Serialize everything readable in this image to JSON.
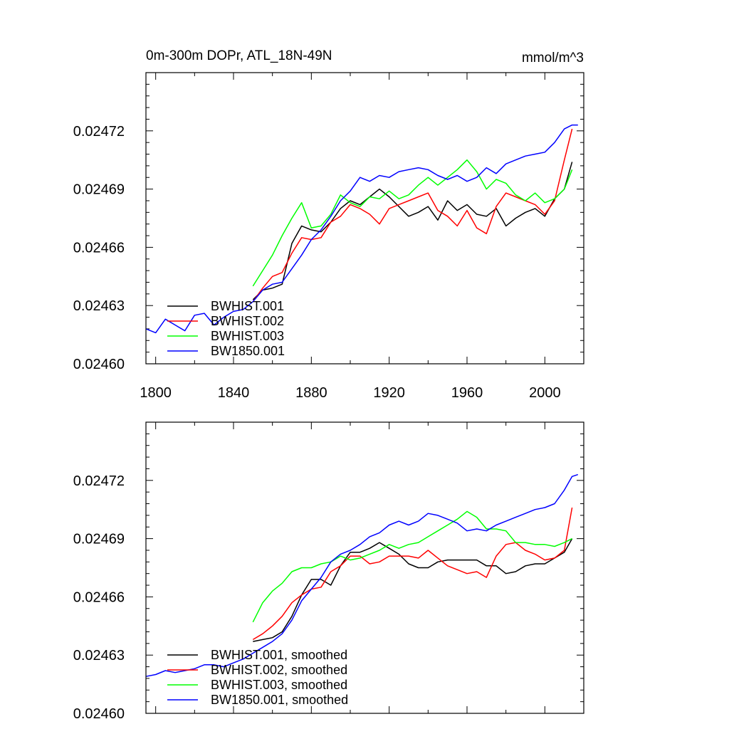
{
  "chart_data": [
    {
      "type": "line",
      "title_left": "0m-300m DOPr, ATL_18N-49N",
      "title_right": "mmol/m^3",
      "xlim": [
        1795,
        2020
      ],
      "ylim": [
        0.0246,
        0.02475
      ],
      "x_ticks": [
        1800,
        1840,
        1880,
        1920,
        1960,
        2000
      ],
      "x_tick_labels": [
        "1800",
        "1840",
        "1880",
        "1920",
        "1960",
        "2000"
      ],
      "y_ticks": [
        0.0246,
        0.02463,
        0.02466,
        0.02469,
        0.02472
      ],
      "y_tick_labels": [
        "0.02460",
        "0.02463",
        "0.02466",
        "0.02469",
        "0.02472"
      ],
      "legend_location": "lower-left",
      "series": [
        {
          "name": "BWHIST.001",
          "color": "#000000",
          "x": [
            1850,
            1855,
            1860,
            1865,
            1870,
            1875,
            1880,
            1885,
            1890,
            1895,
            1900,
            1905,
            1910,
            1915,
            1920,
            1925,
            1930,
            1935,
            1940,
            1945,
            1950,
            1955,
            1960,
            1965,
            1970,
            1975,
            1980,
            1985,
            1990,
            1995,
            2000,
            2005,
            2010,
            2014
          ],
          "y": [
            0.024633,
            0.024638,
            0.024639,
            0.024641,
            0.024662,
            0.024671,
            0.024669,
            0.024668,
            0.024673,
            0.02468,
            0.024684,
            0.024682,
            0.024686,
            0.02469,
            0.024686,
            0.024681,
            0.024676,
            0.024678,
            0.024681,
            0.024674,
            0.024684,
            0.024679,
            0.024682,
            0.024677,
            0.024676,
            0.02468,
            0.024671,
            0.024675,
            0.024678,
            0.02468,
            0.024676,
            0.024685,
            0.02469,
            0.024704
          ]
        },
        {
          "name": "BWHIST.002",
          "color": "#ff0000",
          "x": [
            1850,
            1855,
            1860,
            1865,
            1870,
            1875,
            1880,
            1885,
            1890,
            1895,
            1900,
            1905,
            1910,
            1915,
            1920,
            1925,
            1930,
            1935,
            1940,
            1945,
            1950,
            1955,
            1960,
            1965,
            1970,
            1975,
            1980,
            1985,
            1990,
            1995,
            2000,
            2005,
            2010,
            2014
          ],
          "y": [
            0.024632,
            0.024639,
            0.024645,
            0.024647,
            0.024657,
            0.024665,
            0.024664,
            0.024665,
            0.024673,
            0.024676,
            0.024682,
            0.02468,
            0.024677,
            0.024672,
            0.02468,
            0.024682,
            0.024684,
            0.024686,
            0.024688,
            0.024679,
            0.024676,
            0.024671,
            0.024679,
            0.02467,
            0.024667,
            0.024681,
            0.024688,
            0.024686,
            0.024684,
            0.024682,
            0.024677,
            0.024684,
            0.024705,
            0.024721
          ]
        },
        {
          "name": "BWHIST.003",
          "color": "#00ff00",
          "x": [
            1850,
            1855,
            1860,
            1865,
            1870,
            1875,
            1880,
            1885,
            1890,
            1895,
            1900,
            1905,
            1910,
            1915,
            1920,
            1925,
            1930,
            1935,
            1940,
            1945,
            1950,
            1955,
            1960,
            1965,
            1970,
            1975,
            1980,
            1985,
            1990,
            1995,
            2000,
            2005,
            2010,
            2014
          ],
          "y": [
            0.02464,
            0.024648,
            0.024656,
            0.024666,
            0.024675,
            0.024683,
            0.02467,
            0.024671,
            0.024677,
            0.024687,
            0.024683,
            0.024681,
            0.024686,
            0.024685,
            0.024689,
            0.024685,
            0.024687,
            0.024692,
            0.024696,
            0.024692,
            0.024696,
            0.0247,
            0.024705,
            0.024699,
            0.02469,
            0.024695,
            0.024693,
            0.024687,
            0.024684,
            0.024688,
            0.024683,
            0.024685,
            0.02469,
            0.0247
          ]
        },
        {
          "name": "BW1850.001",
          "color": "#0000ff",
          "x": [
            1795,
            1800,
            1805,
            1810,
            1815,
            1820,
            1825,
            1830,
            1835,
            1840,
            1845,
            1850,
            1855,
            1860,
            1865,
            1870,
            1875,
            1880,
            1885,
            1890,
            1895,
            1900,
            1905,
            1910,
            1915,
            1920,
            1925,
            1930,
            1935,
            1940,
            1945,
            1950,
            1955,
            1960,
            1965,
            1970,
            1975,
            1980,
            1985,
            1990,
            1995,
            2000,
            2005,
            2010,
            2014,
            2017
          ],
          "y": [
            0.024618,
            0.024616,
            0.024623,
            0.02462,
            0.024617,
            0.024625,
            0.024626,
            0.02462,
            0.024624,
            0.024627,
            0.024628,
            0.024632,
            0.024638,
            0.024641,
            0.024642,
            0.024649,
            0.024656,
            0.024664,
            0.024669,
            0.024676,
            0.024684,
            0.024689,
            0.024696,
            0.024694,
            0.024697,
            0.024696,
            0.024699,
            0.0247,
            0.024701,
            0.0247,
            0.024697,
            0.024695,
            0.024697,
            0.024694,
            0.024696,
            0.024701,
            0.024698,
            0.024703,
            0.024705,
            0.024707,
            0.024708,
            0.024709,
            0.024714,
            0.024721,
            0.024723,
            0.024723
          ]
        }
      ]
    },
    {
      "type": "line",
      "xlim": [
        1795,
        2020
      ],
      "ylim": [
        0.0246,
        0.02475
      ],
      "x_ticks": [
        1800,
        1840,
        1880,
        1920,
        1960,
        2000
      ],
      "y_ticks": [
        0.0246,
        0.02463,
        0.02466,
        0.02469,
        0.02472
      ],
      "y_tick_labels": [
        "0.02460",
        "0.02463",
        "0.02466",
        "0.02469",
        "0.02472"
      ],
      "legend_location": "lower-left",
      "series": [
        {
          "name": "BWHIST.001, smoothed",
          "color": "#000000",
          "x": [
            1850,
            1855,
            1860,
            1865,
            1870,
            1875,
            1880,
            1885,
            1890,
            1895,
            1900,
            1905,
            1910,
            1915,
            1920,
            1925,
            1930,
            1935,
            1940,
            1945,
            1950,
            1955,
            1960,
            1965,
            1970,
            1975,
            1980,
            1985,
            1990,
            1995,
            2000,
            2005,
            2010,
            2014
          ],
          "y": [
            0.024637,
            0.024638,
            0.024639,
            0.024642,
            0.02465,
            0.024661,
            0.024669,
            0.024669,
            0.024666,
            0.024676,
            0.024683,
            0.024683,
            0.024685,
            0.024688,
            0.024685,
            0.024682,
            0.024677,
            0.024675,
            0.024675,
            0.024678,
            0.024679,
            0.024679,
            0.024679,
            0.024679,
            0.024676,
            0.024676,
            0.024672,
            0.024673,
            0.024676,
            0.024677,
            0.024677,
            0.02468,
            0.024683,
            0.02469
          ]
        },
        {
          "name": "BWHIST.002, smoothed",
          "color": "#ff0000",
          "x": [
            1850,
            1855,
            1860,
            1865,
            1870,
            1875,
            1880,
            1885,
            1890,
            1895,
            1900,
            1905,
            1910,
            1915,
            1920,
            1925,
            1930,
            1935,
            1940,
            1945,
            1950,
            1955,
            1960,
            1965,
            1970,
            1975,
            1980,
            1985,
            1990,
            1995,
            2000,
            2005,
            2010,
            2014
          ],
          "y": [
            0.024638,
            0.024641,
            0.024645,
            0.02465,
            0.024657,
            0.024661,
            0.024664,
            0.024665,
            0.024673,
            0.024676,
            0.024681,
            0.024681,
            0.024677,
            0.024678,
            0.024681,
            0.024681,
            0.024681,
            0.02468,
            0.024684,
            0.02468,
            0.024676,
            0.024674,
            0.024672,
            0.024673,
            0.02467,
            0.024681,
            0.024687,
            0.024688,
            0.024684,
            0.024682,
            0.024679,
            0.02468,
            0.024684,
            0.024706
          ]
        },
        {
          "name": "BWHIST.003, smoothed",
          "color": "#00ff00",
          "x": [
            1850,
            1855,
            1860,
            1865,
            1870,
            1875,
            1880,
            1885,
            1890,
            1895,
            1900,
            1905,
            1910,
            1915,
            1920,
            1925,
            1930,
            1935,
            1940,
            1945,
            1950,
            1955,
            1960,
            1965,
            1970,
            1975,
            1980,
            1985,
            1990,
            1995,
            2000,
            2005,
            2010,
            2014
          ],
          "y": [
            0.024647,
            0.024657,
            0.024663,
            0.024667,
            0.024673,
            0.024675,
            0.024675,
            0.024677,
            0.024678,
            0.024681,
            0.024679,
            0.02468,
            0.024682,
            0.024684,
            0.024687,
            0.024685,
            0.024687,
            0.024688,
            0.024691,
            0.024694,
            0.024697,
            0.0247,
            0.024704,
            0.024701,
            0.024695,
            0.024695,
            0.024694,
            0.024688,
            0.024688,
            0.024687,
            0.024687,
            0.024686,
            0.024688,
            0.02469
          ]
        },
        {
          "name": "BW1850.001, smoothed",
          "color": "#0000ff",
          "x": [
            1795,
            1800,
            1805,
            1810,
            1815,
            1820,
            1825,
            1830,
            1835,
            1840,
            1845,
            1850,
            1855,
            1860,
            1865,
            1870,
            1875,
            1880,
            1885,
            1890,
            1895,
            1900,
            1905,
            1910,
            1915,
            1920,
            1925,
            1930,
            1935,
            1940,
            1945,
            1950,
            1955,
            1960,
            1965,
            1970,
            1975,
            1980,
            1985,
            1990,
            1995,
            2000,
            2005,
            2010,
            2014,
            2017
          ],
          "y": [
            0.024619,
            0.02462,
            0.024622,
            0.024621,
            0.024622,
            0.024623,
            0.024625,
            0.024625,
            0.024624,
            0.024626,
            0.024628,
            0.024631,
            0.024634,
            0.024637,
            0.024641,
            0.024648,
            0.024658,
            0.024664,
            0.02467,
            0.024678,
            0.024682,
            0.024684,
            0.024687,
            0.024691,
            0.024693,
            0.024697,
            0.024699,
            0.024697,
            0.024699,
            0.024703,
            0.024702,
            0.0247,
            0.024698,
            0.024694,
            0.024695,
            0.024694,
            0.024697,
            0.024699,
            0.024701,
            0.024703,
            0.024705,
            0.024706,
            0.024708,
            0.024715,
            0.024722,
            0.024723
          ]
        }
      ]
    }
  ]
}
